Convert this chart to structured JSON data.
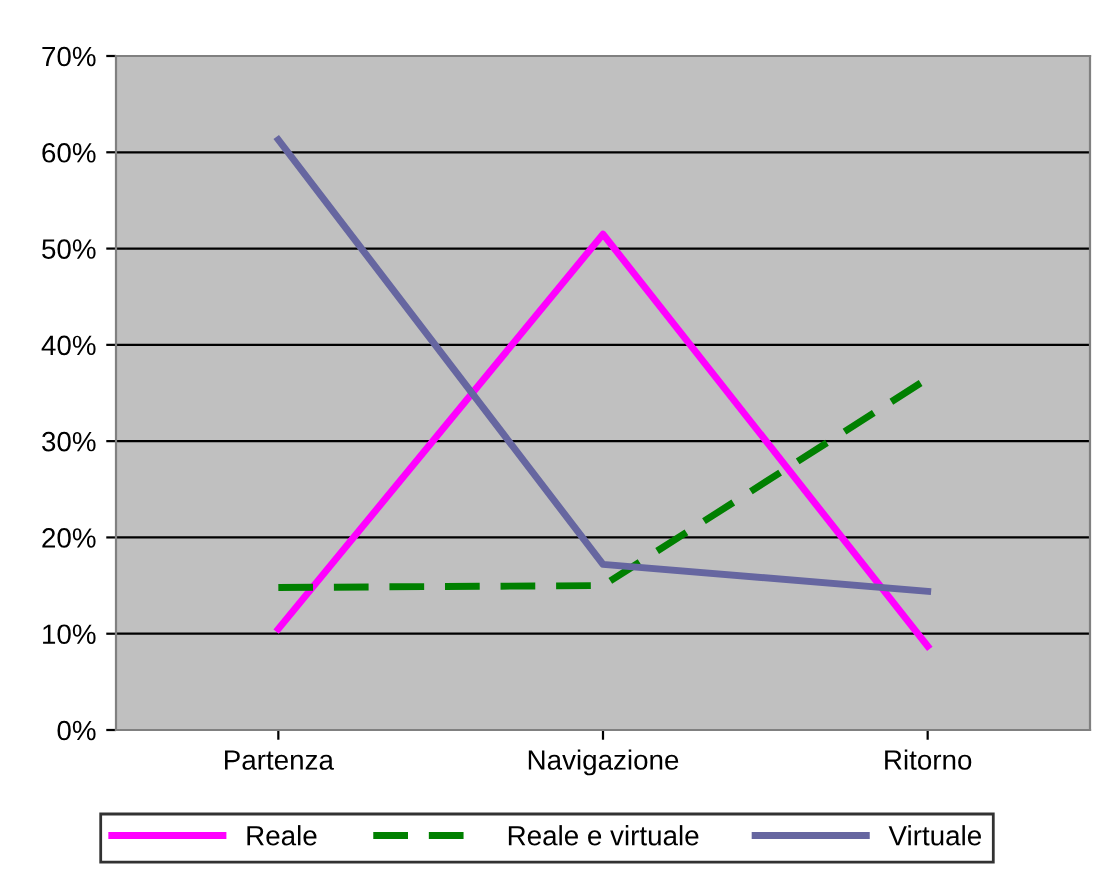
{
  "chart_data": {
    "type": "line",
    "categories": [
      "Partenza",
      "Navigazione",
      "Ritorno"
    ],
    "series": [
      {
        "name": "Reale",
        "color": "#ff00ff",
        "values": [
          10.5,
          51.5,
          8.7
        ],
        "line_style": "solid"
      },
      {
        "name": "Reale e virtuale",
        "color": "#008000",
        "values": [
          14.8,
          15.0,
          36.5
        ],
        "line_style": "dashed"
      },
      {
        "name": "Virtuale",
        "color": "#6666a0",
        "values": [
          61.3,
          17.2,
          14.4
        ],
        "line_style": "solid"
      }
    ],
    "ylim": [
      0,
      70
    ],
    "yticks": [
      {
        "value": 0,
        "label": "0%"
      },
      {
        "value": 10,
        "label": "10%"
      },
      {
        "value": 20,
        "label": "20%"
      },
      {
        "value": 30,
        "label": "30%"
      },
      {
        "value": 40,
        "label": "40%"
      },
      {
        "value": 50,
        "label": "50%"
      },
      {
        "value": 60,
        "label": "60%"
      },
      {
        "value": 70,
        "label": "70%"
      }
    ],
    "grid": "y",
    "legend": "bottom",
    "marker": "none"
  }
}
